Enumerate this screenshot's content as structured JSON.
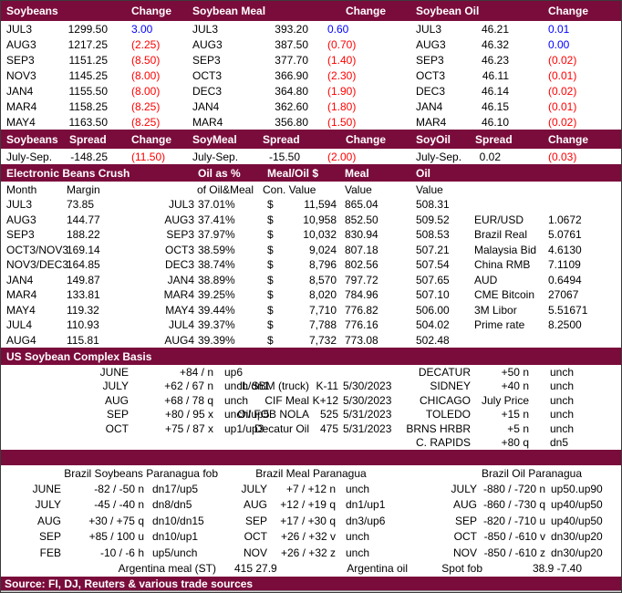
{
  "colors": {
    "maroon": "#7A0C3C",
    "up": "#0000FF",
    "down": "#FF0000"
  },
  "futures": {
    "headers": [
      "Soybeans",
      "Change",
      "Soybean Meal",
      "Change",
      "Soybean Oil",
      "Change"
    ],
    "rows": [
      [
        "JUL3",
        "1299.50",
        "3.00",
        "JUL3",
        "393.20",
        "0.60",
        "JUL3",
        "46.21",
        "0.01"
      ],
      [
        "AUG3",
        "1217.25",
        "(2.25)",
        "AUG3",
        "387.50",
        "(0.70)",
        "AUG3",
        "46.32",
        "0.00"
      ],
      [
        "SEP3",
        "1151.25",
        "(8.50)",
        "SEP3",
        "377.70",
        "(1.40)",
        "SEP3",
        "46.23",
        "(0.02)"
      ],
      [
        "NOV3",
        "1145.25",
        "(8.00)",
        "OCT3",
        "366.90",
        "(2.30)",
        "OCT3",
        "46.11",
        "(0.01)"
      ],
      [
        "JAN4",
        "1155.50",
        "(8.00)",
        "DEC3",
        "364.80",
        "(1.90)",
        "DEC3",
        "46.14",
        "(0.02)"
      ],
      [
        "MAR4",
        "1158.25",
        "(8.25)",
        "JAN4",
        "362.60",
        "(1.80)",
        "JAN4",
        "46.15",
        "(0.01)"
      ],
      [
        "MAY4",
        "1163.50",
        "(8.25)",
        "MAR4",
        "356.80",
        "(1.50)",
        "MAR4",
        "46.10",
        "(0.02)"
      ]
    ]
  },
  "spreads": {
    "headers": [
      "Soybeans",
      "Spread",
      "Change",
      "SoyMeal",
      "Spread",
      "Change",
      "SoyOil",
      "Spread",
      "Change"
    ],
    "row": [
      "July-Sep.",
      "-148.25",
      "(11.50)",
      "July-Sep.",
      "-15.50",
      "(2.00)",
      "July-Sep.",
      "0.02",
      "(0.03)"
    ]
  },
  "crush": {
    "title": "Electronic Beans Crush",
    "col_headers": [
      "Oil as %",
      "Meal/Oil $",
      "Meal",
      "Oil"
    ],
    "subheaders": [
      "Month",
      "Margin",
      "of Oil&Meal",
      "Con. Value",
      "Value",
      "Value"
    ],
    "rows": [
      [
        "JUL3",
        "73.85",
        "JUL3",
        "37.01%",
        "$",
        "11,594",
        "865.04",
        "508.31",
        "",
        ""
      ],
      [
        "AUG3",
        "144.77",
        "AUG3",
        "37.41%",
        "$",
        "10,958",
        "852.50",
        "509.52",
        "EUR/USD",
        "1.0672"
      ],
      [
        "SEP3",
        "188.22",
        "SEP3",
        "37.97%",
        "$",
        "10,032",
        "830.94",
        "508.53",
        "Brazil Real",
        "5.0761"
      ],
      [
        "OCT3/NOV3",
        "169.14",
        "OCT3",
        "38.59%",
        "$",
        "9,024",
        "807.18",
        "507.21",
        "Malaysia Bid",
        "4.6130"
      ],
      [
        "NOV3/DEC3",
        "164.85",
        "DEC3",
        "38.74%",
        "$",
        "8,796",
        "802.56",
        "507.54",
        "China RMB",
        "7.1109"
      ],
      [
        "JAN4",
        "149.87",
        "JAN4",
        "38.89%",
        "$",
        "8,570",
        "797.72",
        "507.65",
        "AUD",
        "0.6494"
      ],
      [
        "MAR4",
        "133.81",
        "MAR4",
        "39.25%",
        "$",
        "8,020",
        "784.96",
        "507.10",
        "CME Bitcoin",
        "27067"
      ],
      [
        "MAY4",
        "119.32",
        "MAY4",
        "39.44%",
        "$",
        "7,710",
        "776.82",
        "506.00",
        "3M Libor",
        "5.51671"
      ],
      [
        "JUL4",
        "110.93",
        "JUL4",
        "39.37%",
        "$",
        "7,788",
        "776.16",
        "504.02",
        "Prime rate",
        "8.2500"
      ],
      [
        "AUG4",
        "115.81",
        "AUG4",
        "39.39%",
        "$",
        "7,732",
        "773.08",
        "502.48",
        "",
        ""
      ]
    ]
  },
  "us_basis": {
    "title": "US Soybean Complex Basis",
    "rows": [
      [
        "JUNE",
        "+84 / n",
        "up6",
        "",
        "",
        "",
        "DECATUR",
        "+50 n",
        "unch"
      ],
      [
        "JULY",
        "+62 / 67 n",
        "unch/dn1",
        "IL SBM (truck)",
        "K-11",
        "5/30/2023",
        "SIDNEY",
        "+40 n",
        "unch"
      ],
      [
        "AUG",
        "+68 / 78 q",
        "unch",
        "CIF Meal",
        "K+12",
        "5/30/2023",
        "CHICAGO",
        "July Price",
        "unch"
      ],
      [
        "SEP",
        "+80 / 95 x",
        "unch/up5",
        "Oil FOB NOLA",
        "525",
        "5/31/2023",
        "TOLEDO",
        "+15 n",
        "unch"
      ],
      [
        "OCT",
        "+75 / 87 x",
        "up1/up3",
        "Decatur Oil",
        "475",
        "5/31/2023",
        "BRNS HRBR",
        "+5 n",
        "unch"
      ],
      [
        "",
        "",
        "",
        "",
        "",
        "",
        "C. RAPIDS",
        "+80 q",
        "dn5"
      ]
    ]
  },
  "brazil": {
    "titles": [
      "Brazil Soybeans Paranagua fob",
      "Brazil Meal Paranagua",
      "Brazil Oil Paranagua"
    ],
    "rows": [
      [
        "JUNE",
        "-82 / -50 n",
        "dn17/up5",
        "JULY",
        "+7 / +12 n",
        "unch",
        "JULY",
        "-880 / -720 n",
        "up50.up90"
      ],
      [
        "JULY",
        "-45 / -40 n",
        "dn8/dn5",
        "AUG",
        "+12 / +19 q",
        "dn1/up1",
        "AUG",
        "-860 / -730 q",
        "up40/up50"
      ],
      [
        "AUG",
        "+30 / +75 q",
        "dn10/dn15",
        "SEP",
        "+17 / +30 q",
        "dn3/up6",
        "SEP",
        "-820 / -710 u",
        "up40/up50"
      ],
      [
        "SEP",
        "+85 / 100 u",
        "dn10/up1",
        "OCT",
        "+26 / +32 v",
        "unch",
        "OCT",
        "-850 / -610 v",
        "dn30/up20"
      ],
      [
        "FEB",
        "-10 / -6 h",
        "up5/unch",
        "NOV",
        "+26 / +32 z",
        "unch",
        "NOV",
        "-850 / -610 z",
        "dn30/up20"
      ]
    ],
    "last_row": [
      "Argentina meal (ST)",
      "415 27.9",
      "Argentina oil",
      "Spot fob",
      "38.9 -7.40"
    ]
  },
  "footer": {
    "text": "Source: FI, DJ, Reuters & various trade sources"
  }
}
